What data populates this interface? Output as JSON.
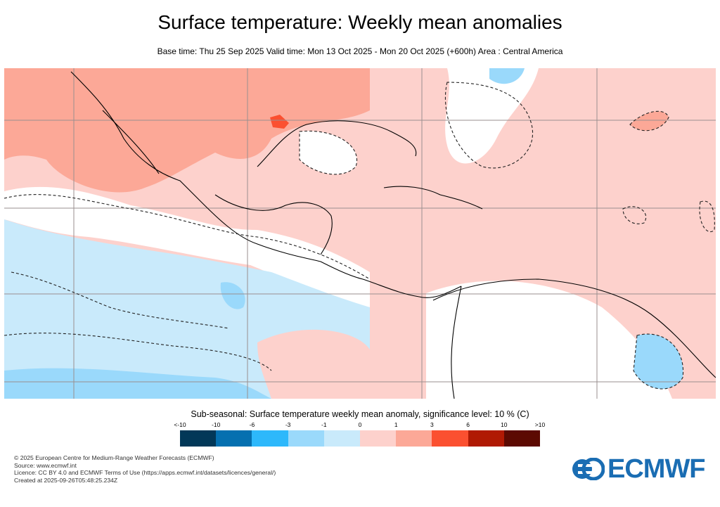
{
  "title": "Surface temperature: Weekly mean anomalies",
  "subtitle": "Base time: Thu 25 Sep 2025 Valid time: Mon 13 Oct 2025 - Mon 20 Oct 2025 (+600h) Area : Central America",
  "map": {
    "area": "Central America",
    "colors": {
      "land_outline": "#000000",
      "grid": "#9a8f8f",
      "significance_contour": "#222222"
    }
  },
  "legend": {
    "title": "Sub-seasonal: Surface temperature weekly mean anomaly, significance level: 10 % (C)",
    "ticks": [
      "<-10",
      "-10",
      "-6",
      "-3",
      "-1",
      "0",
      "1",
      "3",
      "6",
      "10",
      ">10"
    ],
    "colors": [
      "#023858",
      "#0570b0",
      "#2db8fb",
      "#9ad9fb",
      "#c9eafb",
      "#fdd1cc",
      "#fca897",
      "#fb5030",
      "#b01a04",
      "#5c0a02"
    ]
  },
  "footer": {
    "lines": [
      "© 2025 European Centre for Medium-Range Weather Forecasts (ECMWF)",
      "Source: www.ecmwf.int",
      "Licence: CC BY 4.0 and ECMWF Terms of Use (https://apps.ecmwf.int/datasets/licences/general/)",
      "Created at 2025-09-26T05:48:25.234Z"
    ]
  },
  "logo": {
    "text": "ECMWF",
    "color": "#1a6db3"
  }
}
